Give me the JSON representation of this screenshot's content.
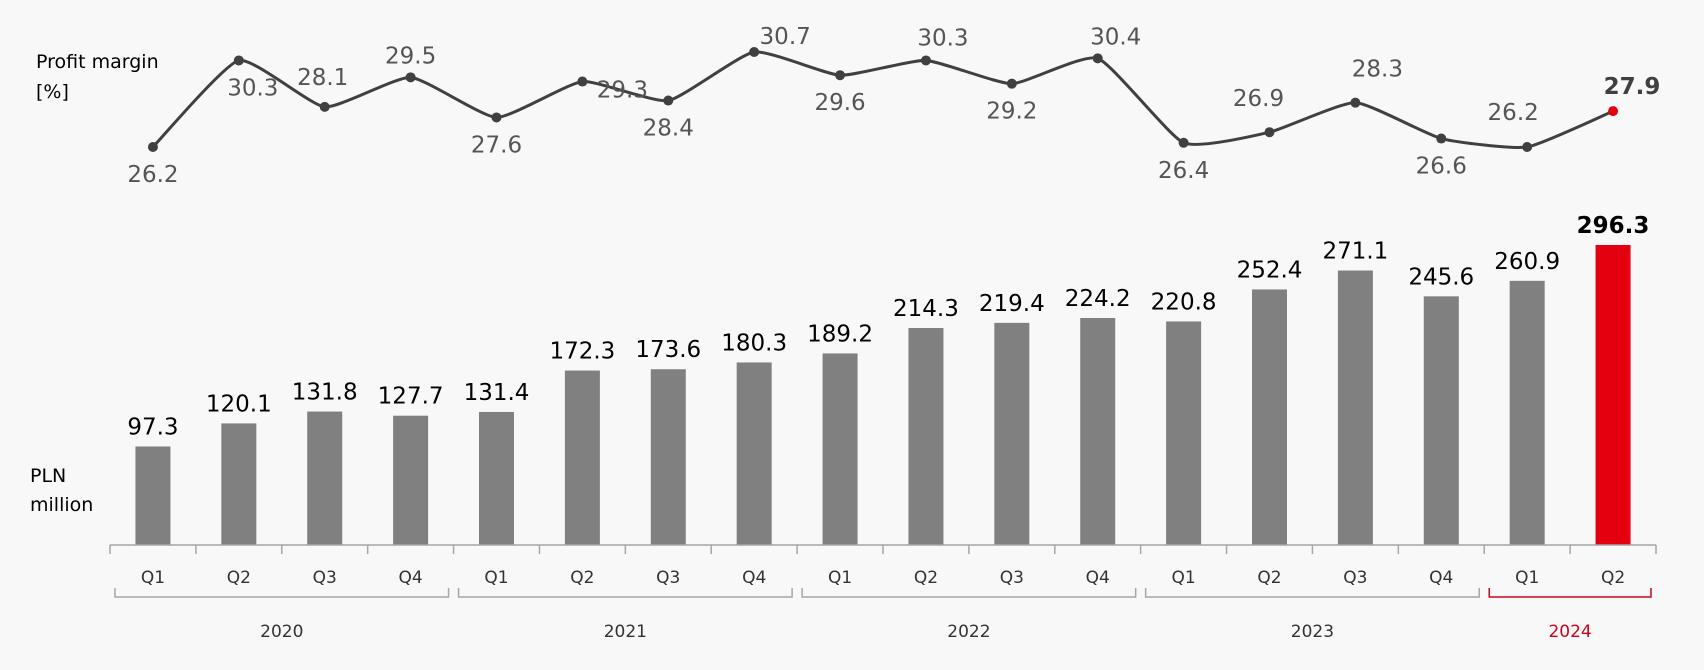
{
  "chart_data": {
    "type": "bar",
    "colors": {
      "bar": "#808080",
      "highlight": "#e3000f",
      "line": "#404040",
      "axis": "#a6a6a6",
      "highlight_text": "#d0021b"
    },
    "quarters": [
      "Q1",
      "Q2",
      "Q3",
      "Q4",
      "Q1",
      "Q2",
      "Q3",
      "Q4",
      "Q1",
      "Q2",
      "Q3",
      "Q4",
      "Q1",
      "Q2",
      "Q3",
      "Q4",
      "Q1",
      "Q2"
    ],
    "years": [
      {
        "label": "2020",
        "span": [
          0,
          3
        ]
      },
      {
        "label": "2021",
        "span": [
          4,
          7
        ]
      },
      {
        "label": "2022",
        "span": [
          8,
          11
        ]
      },
      {
        "label": "2023",
        "span": [
          12,
          15
        ]
      },
      {
        "label": "2024",
        "span": [
          16,
          17
        ],
        "highlight": true
      }
    ],
    "margin_label": [
      "Profit margin",
      "[%]"
    ],
    "bars_label": [
      "PLN",
      "million"
    ],
    "margin_series": {
      "values": [
        26.2,
        30.3,
        28.1,
        29.5,
        27.6,
        29.3,
        28.4,
        30.7,
        29.6,
        30.3,
        29.2,
        30.4,
        26.4,
        26.9,
        28.3,
        26.6,
        26.2,
        27.9
      ],
      "labels": [
        "26.2",
        "30.3",
        "28.1",
        "29.5",
        "27.6",
        "29.3",
        "28.4",
        "30.7",
        "29.6",
        "30.3",
        "29.2",
        "30.4",
        "26.4",
        "26.9",
        "28.3",
        "26.6",
        "26.2",
        "27.9"
      ]
    },
    "bar_series": {
      "values": [
        97.3,
        120.1,
        131.8,
        127.7,
        131.4,
        172.3,
        173.6,
        180.3,
        189.2,
        214.3,
        219.4,
        224.2,
        220.8,
        252.4,
        271.1,
        245.6,
        260.9,
        296.3
      ],
      "labels": [
        "97.3",
        "120.1",
        "131.8",
        "127.7",
        "131.4",
        "172.3",
        "173.6",
        "180.3",
        "189.2",
        "214.3",
        "219.4",
        "224.2",
        "220.8",
        "252.4",
        "271.1",
        "245.6",
        "260.9",
        "296.3"
      ]
    },
    "highlight_index": 17
  }
}
